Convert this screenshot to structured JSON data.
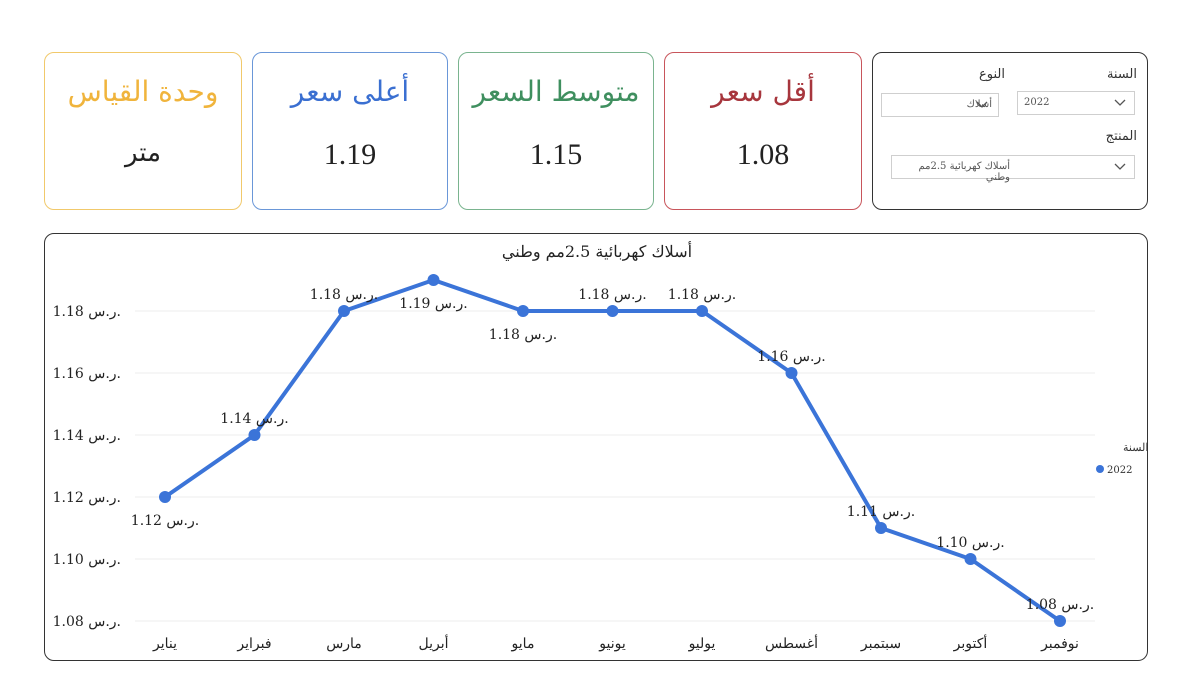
{
  "kpis": {
    "unit": {
      "title": "وحدة القياس",
      "value": "متر"
    },
    "max": {
      "title": "أعلى سعر",
      "value": "1.19"
    },
    "avg": {
      "title": "متوسط السعر",
      "value": "1.15"
    },
    "min": {
      "title": "أقل سعر",
      "value": "1.08"
    }
  },
  "filters": {
    "year_label": "السنة",
    "year_value": "2022",
    "type_label": "النوع",
    "type_value": "أسلاك",
    "product_label": "المنتج",
    "product_value": "أسلاك كهربائية 2.5مم وطني"
  },
  "colors": {
    "line": "#3b74d8",
    "unit": "#f0b43c",
    "max": "#3a6fd1",
    "avg": "#3f8f5f",
    "min": "#a7363d"
  },
  "chart_data": {
    "type": "line",
    "title": "أسلاك كهربائية 2.5مم وطني",
    "categories": [
      "يناير",
      "فبراير",
      "مارس",
      "أبريل",
      "مايو",
      "يونيو",
      "يوليو",
      "أغسطس",
      "سبتمبر",
      "أكتوبر",
      "نوفمبر"
    ],
    "series": [
      {
        "name": "2022",
        "values": [
          1.12,
          1.14,
          1.18,
          1.19,
          1.18,
          1.18,
          1.18,
          1.16,
          1.11,
          1.1,
          1.08
        ]
      }
    ],
    "data_labels": [
      "1.12 ر.س.",
      "1.14 ر.س.",
      "1.18 ر.س.",
      "1.19 ر.س.",
      "1.18 ر.س.",
      "1.18 ر.س.",
      "1.18 ر.س.",
      "1.16 ر.س.",
      "1.11 ر.س.",
      "1.10 ر.س.",
      "1.08 ر.س."
    ],
    "yticks": [
      1.08,
      1.1,
      1.12,
      1.14,
      1.16,
      1.18
    ],
    "ytick_labels": [
      "1.08 ر.س.",
      "1.10 ر.س.",
      "1.12 ر.س.",
      "1.14 ر.س.",
      "1.16 ر.س.",
      "1.18 ر.س."
    ],
    "ylim": [
      1.08,
      1.19
    ],
    "legend_title": "السنة",
    "legend_position": "right",
    "grid": true
  }
}
